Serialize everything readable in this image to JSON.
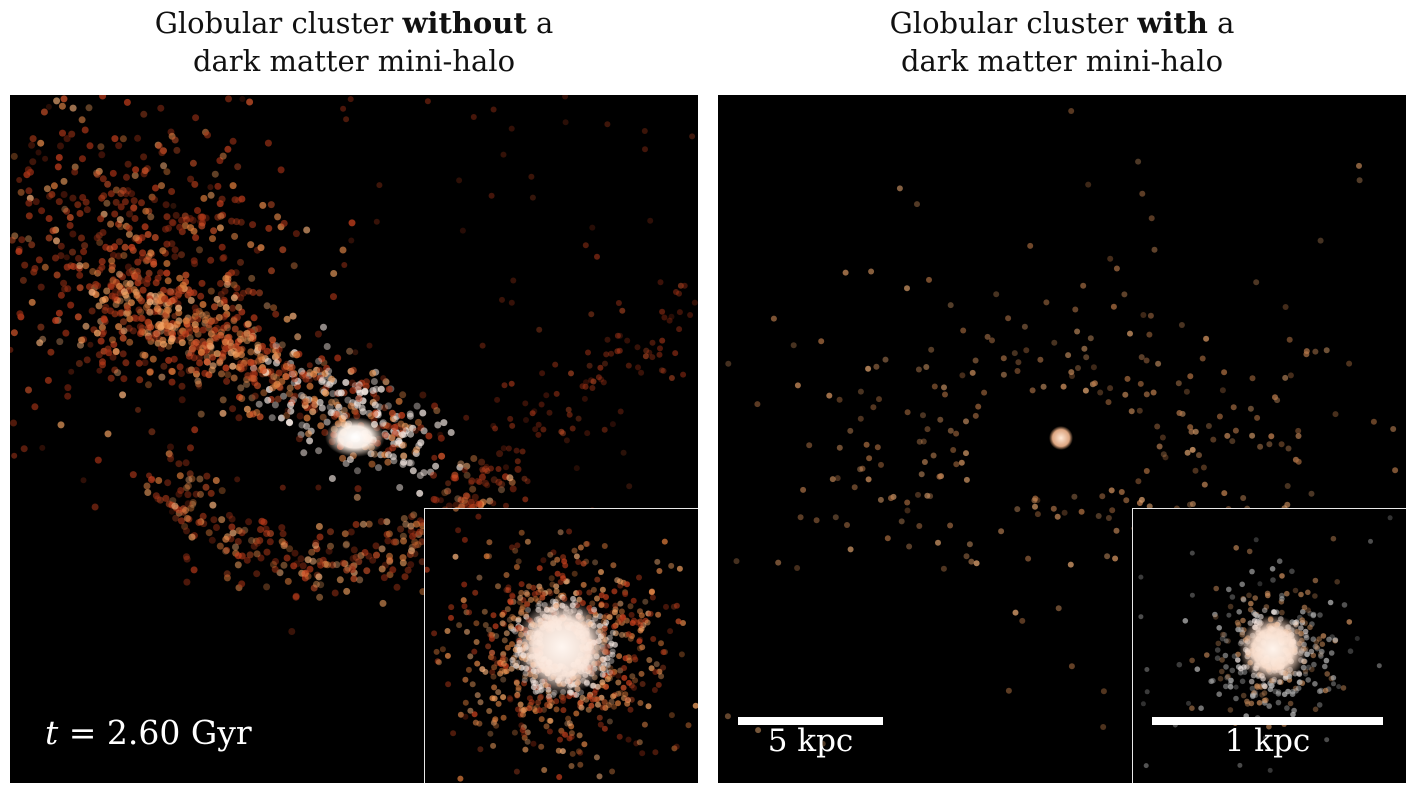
{
  "left_panel": {
    "title_line1_pre": "Globular cluster ",
    "title_line1_bold": "without",
    "title_line1_post": " a",
    "title_line2": "dark matter mini-halo",
    "time_label_var": "t",
    "time_label_rest": " = 2.60 Gyr"
  },
  "right_panel": {
    "title_line1_pre": "Globular cluster ",
    "title_line1_bold": "with",
    "title_line1_post": " a",
    "title_line2": "dark matter mini-halo",
    "scalebar_main_label": "5 kpc",
    "scalebar_inset_label": "1 kpc"
  },
  "colors": {
    "background": "#000000",
    "stream_red": "#c8401e",
    "stream_orange": "#e88a4a",
    "core_white": "#fff2ea",
    "sparse_tan": "#c68a5a"
  }
}
